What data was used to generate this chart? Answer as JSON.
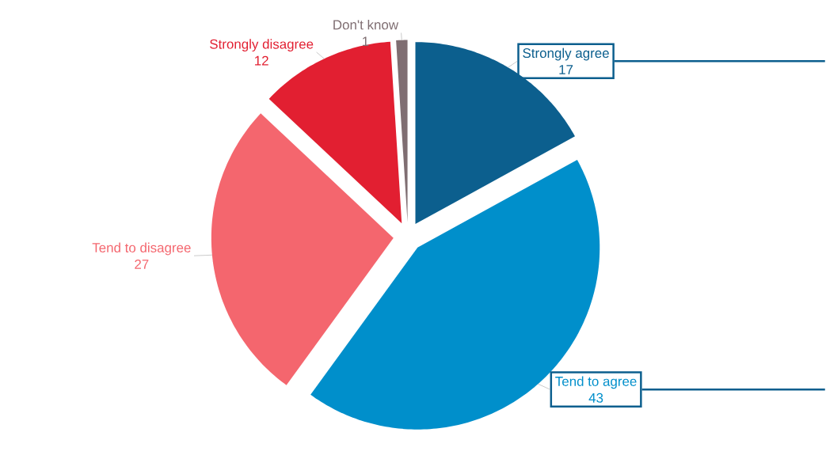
{
  "chart_data": {
    "type": "pie",
    "categories": [
      "Strongly agree",
      "Tend to agree",
      "Tend to disagree",
      "Strongly disagree",
      "Don't know"
    ],
    "values": [
      17,
      43,
      27,
      12,
      1
    ],
    "colors": [
      "#0c5f8e",
      "#008fcb",
      "#f4666e",
      "#e21f31",
      "#7f6e72"
    ],
    "data_labels": true
  }
}
